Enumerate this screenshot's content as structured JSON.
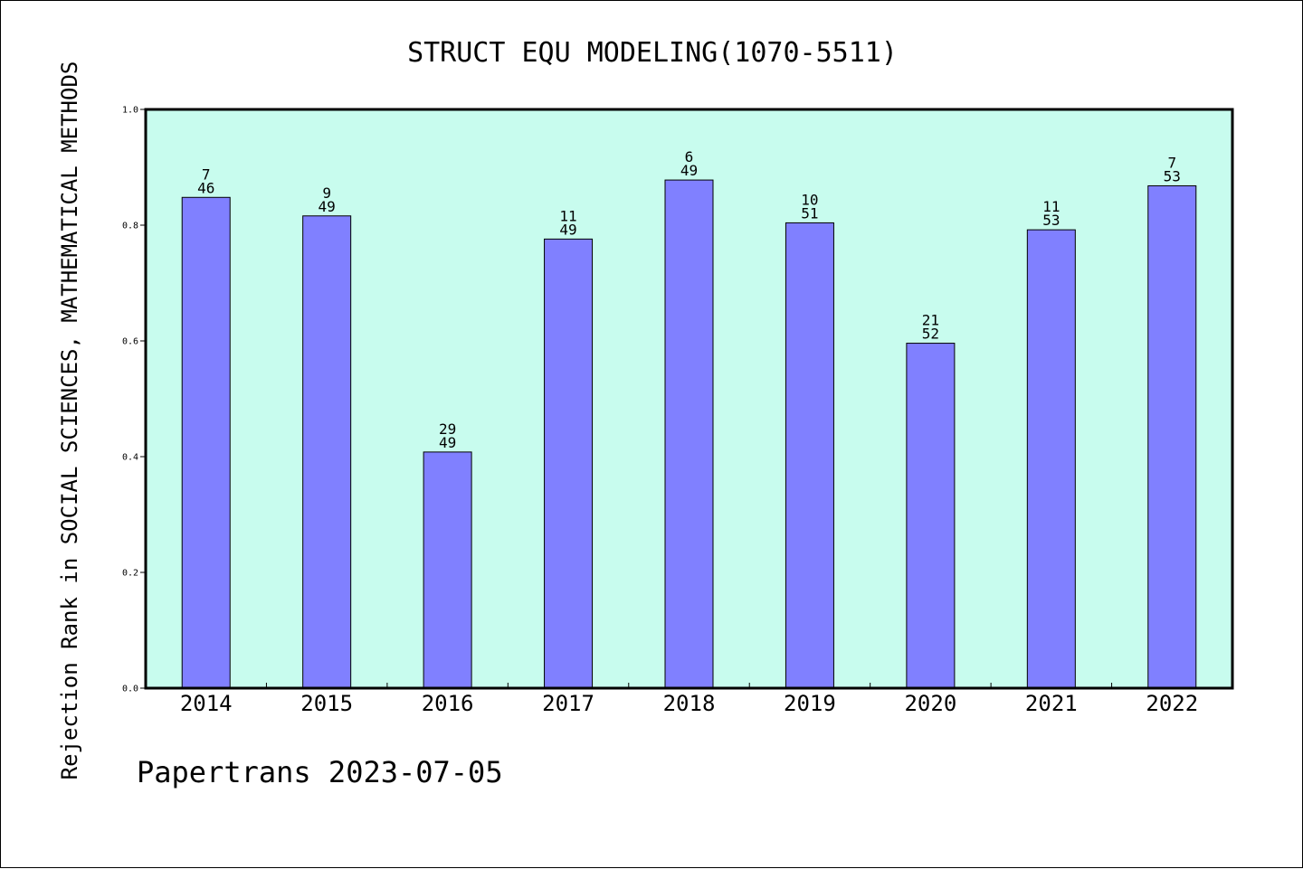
{
  "colors": {
    "plot_background": "#c8fcee",
    "bar_fill": "#8080ff",
    "bar_stroke": "#000000",
    "frame": "#000000"
  },
  "footer": {
    "text": "Papertrans 2023-07-05"
  },
  "chart_data": {
    "type": "bar",
    "title": "STRUCT EQU MODELING(1070-5511)",
    "xlabel": "",
    "ylabel": "Rejection Rank in SOCIAL SCIENCES, MATHEMATICAL METHODS",
    "ylim": [
      0.0,
      1.0
    ],
    "yticks": [
      "0.0",
      "0.2",
      "0.4",
      "0.6",
      "0.8",
      "1.0"
    ],
    "grid": false,
    "categories": [
      "2014",
      "2015",
      "2016",
      "2017",
      "2018",
      "2019",
      "2020",
      "2021",
      "2022"
    ],
    "values": [
      0.848,
      0.816,
      0.408,
      0.776,
      0.878,
      0.804,
      0.596,
      0.792,
      0.868
    ],
    "ranks": [
      "7",
      "9",
      "29",
      "11",
      "6",
      "10",
      "21",
      "11",
      "7"
    ],
    "totals": [
      "46",
      "49",
      "49",
      "49",
      "49",
      "51",
      "52",
      "53",
      "53"
    ]
  }
}
